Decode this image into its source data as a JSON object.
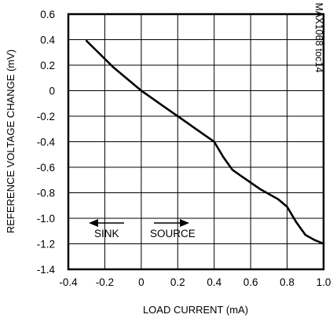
{
  "chart_data": {
    "type": "line",
    "title": "",
    "xlabel": "LOAD CURRENT (mA)",
    "ylabel": "REFERENCE VOLTAGE CHANGE (mV)",
    "xlim": [
      -0.4,
      1.0
    ],
    "ylim": [
      -1.4,
      0.6
    ],
    "xticks": [
      "-0.4",
      "-0.2",
      "0",
      "0.2",
      "0.4",
      "0.6",
      "0.8",
      "1.0"
    ],
    "yticks": [
      "0.6",
      "0.4",
      "0.2",
      "0",
      "-0.2",
      "-0.4",
      "-0.6",
      "-0.8",
      "-1.0",
      "-1.2",
      "-1.4"
    ],
    "grid": true,
    "series": [
      {
        "x": [
          -0.3,
          -0.25,
          -0.2,
          -0.15,
          -0.1,
          -0.05,
          0.0,
          0.05,
          0.1,
          0.15,
          0.2,
          0.25,
          0.3,
          0.35,
          0.4,
          0.45,
          0.5,
          0.55,
          0.6,
          0.65,
          0.7,
          0.75,
          0.8,
          0.85,
          0.9,
          0.95,
          1.0
        ],
        "y": [
          0.39,
          0.32,
          0.25,
          0.18,
          0.12,
          0.06,
          0.0,
          -0.05,
          -0.1,
          -0.15,
          -0.2,
          -0.25,
          -0.3,
          -0.35,
          -0.4,
          -0.52,
          -0.62,
          -0.67,
          -0.72,
          -0.77,
          -0.81,
          -0.85,
          -0.91,
          -1.03,
          -1.13,
          -1.17,
          -1.2
        ]
      }
    ],
    "annotations": {
      "sink": "SINK",
      "source": "SOURCE",
      "figure_code": "MAX1068 toc14"
    }
  }
}
